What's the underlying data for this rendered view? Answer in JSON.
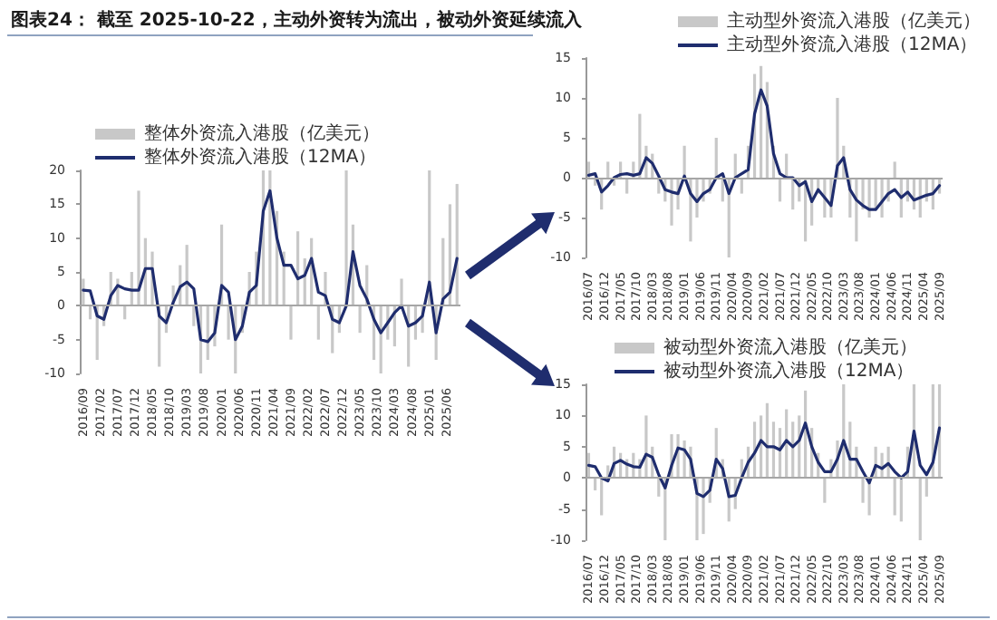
{
  "chart_data": [
    {
      "type": "bar",
      "title": "图表24： 截至 2025-10-22，主动外资转为流出，被动外资延续流入",
      "legend": "top",
      "marker": "none",
      "x": [
        "2016-09",
        "2016-11",
        "2017-01",
        "2017-03",
        "2017-05",
        "2017-07",
        "2017-09",
        "2017-11",
        "2018-01",
        "2018-03",
        "2018-05",
        "2018-07",
        "2018-09",
        "2018-11",
        "2019-01",
        "2019-03",
        "2019-05",
        "2019-07",
        "2019-09",
        "2019-11",
        "2020-01",
        "2020-03",
        "2020-05",
        "2020-07",
        "2020-09",
        "2020-11",
        "2021-01",
        "2021-03",
        "2021-05",
        "2021-07",
        "2021-09",
        "2021-11",
        "2022-01",
        "2022-03",
        "2022-05",
        "2022-07",
        "2022-09",
        "2022-11",
        "2023-01",
        "2023-03",
        "2023-05",
        "2023-07",
        "2023-09",
        "2023-11",
        "2024-01",
        "2024-03",
        "2024-05",
        "2024-07",
        "2024-09",
        "2024-11",
        "2025-01",
        "2025-03",
        "2025-05",
        "2025-07",
        "2025-09"
      ],
      "xlim": [
        "2016-08",
        "2025-10"
      ],
      "xticks": [
        {
          "value": "2016-09",
          "label": "2016/09"
        },
        {
          "value": "2017-02",
          "label": "2017/02"
        },
        {
          "value": "2017-07",
          "label": "2017/07"
        },
        {
          "value": "2017-12",
          "label": "2017/12"
        },
        {
          "value": "2018-05",
          "label": "2018/05"
        },
        {
          "value": "2018-10",
          "label": "2018/10"
        },
        {
          "value": "2019-03",
          "label": "2019/03"
        },
        {
          "value": "2019-08",
          "label": "2019/08"
        },
        {
          "value": "2020-01",
          "label": "2020/01"
        },
        {
          "value": "2020-06",
          "label": "2020/06"
        },
        {
          "value": "2020-11",
          "label": "2020/11"
        },
        {
          "value": "2021-04",
          "label": "2021/04"
        },
        {
          "value": "2021-09",
          "label": "2021/09"
        },
        {
          "value": "2022-02",
          "label": "2022/02"
        },
        {
          "value": "2022-07",
          "label": "2022/07"
        },
        {
          "value": "2022-12",
          "label": "2022/12"
        },
        {
          "value": "2023-05",
          "label": "2023/05"
        },
        {
          "value": "2023-10",
          "label": "2023/10"
        },
        {
          "value": "2024-03",
          "label": "2024/03"
        },
        {
          "value": "2024-08",
          "label": "2024/08"
        },
        {
          "value": "2025-01",
          "label": "2025/01"
        },
        {
          "value": "2025-06",
          "label": "2025/06"
        }
      ],
      "ylim": [
        -10,
        20
      ],
      "yticks": [
        -10,
        -5,
        0,
        5,
        10,
        15,
        20
      ],
      "ref_lines": [
        {
          "axis": "y",
          "value": 0,
          "color": "#a6a6a6"
        }
      ],
      "series": [
        {
          "name": "整体外资流入港股（亿美元）",
          "color": "#c8c8c8",
          "values": [
            4,
            -2,
            -8,
            -3,
            5,
            4,
            -2,
            5,
            17,
            10,
            8,
            -9,
            -4,
            3,
            6,
            9,
            -3,
            -10,
            -8,
            -6,
            12,
            -5,
            -10,
            -4,
            5,
            8,
            20,
            20,
            14,
            8,
            -5,
            11,
            7,
            10,
            -5,
            5,
            -7,
            -4,
            20,
            12,
            -4,
            6,
            -8,
            -10,
            -5,
            -6,
            4,
            -9,
            -5,
            -4,
            20,
            -8,
            10,
            15,
            18
          ]
        },
        {
          "name": "整体外资流入港股（12MA）",
          "type": "line",
          "color": "#1f2d6e",
          "values": [
            2.3,
            2.2,
            -1.5,
            -2.0,
            1.5,
            3.0,
            2.5,
            2.3,
            2.3,
            5.5,
            5.5,
            -1.5,
            -2.5,
            0.5,
            2.8,
            3.5,
            2.5,
            -5.0,
            -5.3,
            -4.0,
            3.0,
            2.0,
            -5.0,
            -3.0,
            2.0,
            3.0,
            14.0,
            17.0,
            10.0,
            6.0,
            6.0,
            4.0,
            4.5,
            7.0,
            2.0,
            1.5,
            -2.0,
            -2.5,
            0.0,
            8.0,
            3.0,
            1.0,
            -2.0,
            -4.0,
            -2.5,
            -1.0,
            0.0,
            -3.0,
            -2.5,
            -1.5,
            3.5,
            -4.0,
            1.0,
            2.0,
            7.0
          ]
        }
      ]
    },
    {
      "type": "bar",
      "legend": "top right",
      "marker": "none",
      "x": [
        "2016-07",
        "2016-09",
        "2016-11",
        "2017-01",
        "2017-03",
        "2017-05",
        "2017-07",
        "2017-09",
        "2017-11",
        "2018-01",
        "2018-03",
        "2018-05",
        "2018-07",
        "2018-09",
        "2018-11",
        "2019-01",
        "2019-03",
        "2019-05",
        "2019-07",
        "2019-09",
        "2019-11",
        "2020-01",
        "2020-03",
        "2020-05",
        "2020-07",
        "2020-09",
        "2020-11",
        "2021-01",
        "2021-03",
        "2021-05",
        "2021-07",
        "2021-09",
        "2021-11",
        "2022-01",
        "2022-03",
        "2022-05",
        "2022-07",
        "2022-09",
        "2022-11",
        "2023-01",
        "2023-03",
        "2023-05",
        "2023-07",
        "2023-09",
        "2023-11",
        "2024-01",
        "2024-03",
        "2024-05",
        "2024-07",
        "2024-09",
        "2024-11",
        "2025-01",
        "2025-03",
        "2025-05",
        "2025-07",
        "2025-09"
      ],
      "xlim": [
        "2016-06",
        "2025-10"
      ],
      "xticks": [
        {
          "value": "2016-07",
          "label": "2016/07"
        },
        {
          "value": "2016-12",
          "label": "2016/12"
        },
        {
          "value": "2017-05",
          "label": "2017/05"
        },
        {
          "value": "2017-10",
          "label": "2017/10"
        },
        {
          "value": "2018-03",
          "label": "2018/03"
        },
        {
          "value": "2018-08",
          "label": "2018/08"
        },
        {
          "value": "2019-01",
          "label": "2019/01"
        },
        {
          "value": "2019-06",
          "label": "2019/06"
        },
        {
          "value": "2019-11",
          "label": "2019/11"
        },
        {
          "value": "2020-04",
          "label": "2020/04"
        },
        {
          "value": "2020-09",
          "label": "2020/09"
        },
        {
          "value": "2021-02",
          "label": "2021/02"
        },
        {
          "value": "2021-07",
          "label": "2021/07"
        },
        {
          "value": "2021-12",
          "label": "2021/12"
        },
        {
          "value": "2022-05",
          "label": "2022/05"
        },
        {
          "value": "2022-10",
          "label": "2022/10"
        },
        {
          "value": "2023-03",
          "label": "2023/03"
        },
        {
          "value": "2023-08",
          "label": "2023/08"
        },
        {
          "value": "2024-01",
          "label": "2024/01"
        },
        {
          "value": "2024-06",
          "label": "2024/06"
        },
        {
          "value": "2024-11",
          "label": "2024/11"
        },
        {
          "value": "2025-04",
          "label": "2025/04"
        },
        {
          "value": "2025-09",
          "label": "2025/09"
        }
      ],
      "ylim": [
        -10,
        15
      ],
      "yticks": [
        -10,
        -5,
        0,
        5,
        10,
        15
      ],
      "ref_lines": [
        {
          "axis": "y",
          "value": 0,
          "color": "#a6a6a6"
        }
      ],
      "series": [
        {
          "name": "主动型外资流入港股（亿美元）",
          "color": "#c8c8c8",
          "values": [
            2,
            -1,
            -4,
            2,
            -1,
            2,
            -2,
            2,
            8,
            4,
            3,
            -2,
            -3,
            -6,
            -4,
            4,
            -8,
            -5,
            -3,
            -2,
            5,
            -3,
            -10,
            3,
            -2,
            4,
            13,
            14,
            12,
            4,
            -3,
            3,
            -4,
            -3,
            -8,
            -6,
            -2,
            -5,
            -5,
            10,
            4,
            -5,
            -8,
            -4,
            -5,
            -4,
            -5,
            -3,
            2,
            -5,
            -3,
            -4,
            -5,
            -3,
            -4,
            -2
          ]
        },
        {
          "name": "主动型外资流入港股（12MA）",
          "type": "line",
          "color": "#1f2d6e",
          "values": [
            0.3,
            0.5,
            -1.8,
            -1.0,
            0.0,
            0.4,
            0.5,
            0.3,
            0.5,
            2.5,
            1.8,
            0.2,
            -1.5,
            -1.8,
            -2.0,
            0.2,
            -2.0,
            -3.0,
            -2.0,
            -1.5,
            0.0,
            0.5,
            -2.0,
            0.0,
            0.5,
            1.0,
            8.0,
            11.0,
            9.0,
            3.0,
            0.5,
            0.0,
            0.0,
            -1.0,
            -0.5,
            -3.0,
            -1.5,
            -2.5,
            -3.5,
            1.5,
            2.5,
            -1.5,
            -2.8,
            -3.5,
            -4.0,
            -4.0,
            -3.0,
            -2.0,
            -1.5,
            -2.5,
            -1.8,
            -2.8,
            -2.5,
            -2.2,
            -2.0,
            -1.0
          ]
        }
      ]
    },
    {
      "type": "bar",
      "legend": "top",
      "marker": "none",
      "x": [
        "2016-07",
        "2016-09",
        "2016-11",
        "2017-01",
        "2017-03",
        "2017-05",
        "2017-07",
        "2017-09",
        "2017-11",
        "2018-01",
        "2018-03",
        "2018-05",
        "2018-07",
        "2018-09",
        "2018-11",
        "2019-01",
        "2019-03",
        "2019-05",
        "2019-07",
        "2019-09",
        "2019-11",
        "2020-01",
        "2020-03",
        "2020-05",
        "2020-07",
        "2020-09",
        "2020-11",
        "2021-01",
        "2021-03",
        "2021-05",
        "2021-07",
        "2021-09",
        "2021-11",
        "2022-01",
        "2022-03",
        "2022-05",
        "2022-07",
        "2022-09",
        "2022-11",
        "2023-01",
        "2023-03",
        "2023-05",
        "2023-07",
        "2023-09",
        "2023-11",
        "2024-01",
        "2024-03",
        "2024-05",
        "2024-07",
        "2024-09",
        "2024-11",
        "2025-01",
        "2025-03",
        "2025-05",
        "2025-07",
        "2025-09"
      ],
      "xlim": [
        "2016-06",
        "2025-10"
      ],
      "xticks": [
        {
          "value": "2016-07",
          "label": "2016/07"
        },
        {
          "value": "2016-12",
          "label": "2016/12"
        },
        {
          "value": "2017-05",
          "label": "2017/05"
        },
        {
          "value": "2017-10",
          "label": "2017/10"
        },
        {
          "value": "2018-03",
          "label": "2018/03"
        },
        {
          "value": "2018-08",
          "label": "2018/08"
        },
        {
          "value": "2019-01",
          "label": "2019/01"
        },
        {
          "value": "2019-06",
          "label": "2019/06"
        },
        {
          "value": "2019-11",
          "label": "2019/11"
        },
        {
          "value": "2020-04",
          "label": "2020/04"
        },
        {
          "value": "2020-09",
          "label": "2020/09"
        },
        {
          "value": "2021-02",
          "label": "2021/02"
        },
        {
          "value": "2021-07",
          "label": "2021/07"
        },
        {
          "value": "2021-12",
          "label": "2021/12"
        },
        {
          "value": "2022-05",
          "label": "2022/05"
        },
        {
          "value": "2022-10",
          "label": "2022/10"
        },
        {
          "value": "2023-03",
          "label": "2023/03"
        },
        {
          "value": "2023-08",
          "label": "2023/08"
        },
        {
          "value": "2024-01",
          "label": "2024/01"
        },
        {
          "value": "2024-06",
          "label": "2024/06"
        },
        {
          "value": "2024-11",
          "label": "2024/11"
        },
        {
          "value": "2025-04",
          "label": "2025/04"
        },
        {
          "value": "2025-09",
          "label": "2025/09"
        }
      ],
      "ylim": [
        -10,
        15
      ],
      "yticks": [
        -10,
        -5,
        0,
        5,
        10,
        15
      ],
      "ref_lines": [
        {
          "axis": "y",
          "value": 0,
          "color": "#a6a6a6"
        }
      ],
      "series": [
        {
          "name": "被动型外资流入港股（亿美元）",
          "color": "#c8c8c8",
          "values": [
            4,
            -2,
            -6,
            2,
            5,
            4,
            3,
            4,
            3,
            10,
            5,
            -3,
            -10,
            7,
            7,
            6,
            5,
            -10,
            -9,
            -4,
            8,
            3,
            -7,
            -5,
            3,
            5,
            9,
            10,
            12,
            9,
            8,
            11,
            9,
            10,
            14,
            8,
            4,
            -4,
            3,
            6,
            15,
            9,
            5,
            -4,
            -6,
            5,
            4,
            5,
            -6,
            -7,
            5,
            15,
            -10,
            -3,
            15,
            15
          ]
        },
        {
          "name": "被动型外资流入港股（12MA）",
          "type": "line",
          "color": "#1f2d6e",
          "values": [
            2.0,
            1.8,
            0.0,
            -0.5,
            2.3,
            2.8,
            2.2,
            1.8,
            1.7,
            3.8,
            3.3,
            0.5,
            -1.6,
            2.0,
            4.8,
            4.5,
            3.0,
            -2.5,
            -3.0,
            -2.0,
            3.0,
            1.5,
            -3.0,
            -2.8,
            0.0,
            2.5,
            4.0,
            6.0,
            5.0,
            5.0,
            4.5,
            6.0,
            5.0,
            6.0,
            8.8,
            5.0,
            2.5,
            1.0,
            1.0,
            3.0,
            6.0,
            3.0,
            3.0,
            1.0,
            -0.8,
            2.0,
            1.5,
            2.3,
            1.0,
            0.0,
            1.0,
            7.5,
            2.0,
            0.5,
            2.5,
            8.0
          ]
        }
      ]
    }
  ]
}
